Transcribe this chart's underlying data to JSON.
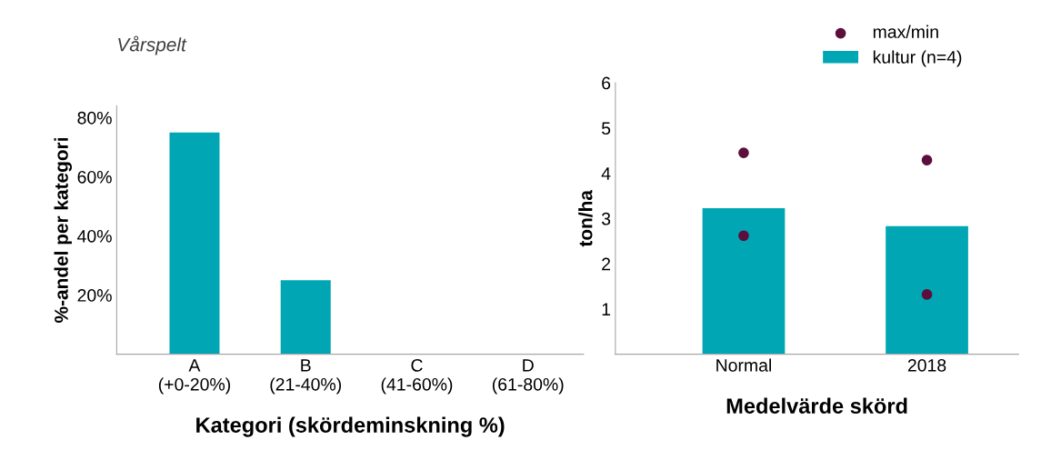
{
  "chart_data": [
    {
      "type": "bar",
      "title": "Vårspelt",
      "xlabel": "Kategori (skördeminskning %)",
      "ylabel": "%-andel per kategori",
      "categories": [
        "A\n(+0-20%)",
        "B\n(21-40%)",
        "C\n(41-60%)",
        "D\n(61-80%)"
      ],
      "series": [
        {
          "color": "#00a6b4",
          "values": [
            75,
            25,
            0,
            0
          ]
        }
      ],
      "ylim": [
        0,
        84
      ],
      "yticks": [
        {
          "value": 20,
          "label": "20%"
        },
        {
          "value": 40,
          "label": "40%"
        },
        {
          "value": 60,
          "label": "60%"
        },
        {
          "value": 80,
          "label": "80%"
        }
      ],
      "grid": false,
      "legend": false
    },
    {
      "type": "bar",
      "xlabel": "Medelvärde skörd",
      "ylabel": "ton/ha",
      "categories": [
        "Normal",
        "2018"
      ],
      "series": [
        {
          "name": "kultur (n=4)",
          "color": "#00a6b4",
          "values": [
            3.23,
            2.83
          ]
        },
        {
          "name": "max/min",
          "type": "scatter",
          "color": "#5c0f3c",
          "values": [
            4.45,
            4.29
          ]
        },
        {
          "type": "scatter",
          "color": "#5c0f3c",
          "values": [
            2.62,
            1.32
          ]
        }
      ],
      "ylim": [
        0,
        6
      ],
      "yticks": [
        1,
        2,
        3,
        4,
        5,
        6
      ],
      "grid": false,
      "legend": "top right",
      "marker": "circle"
    }
  ]
}
